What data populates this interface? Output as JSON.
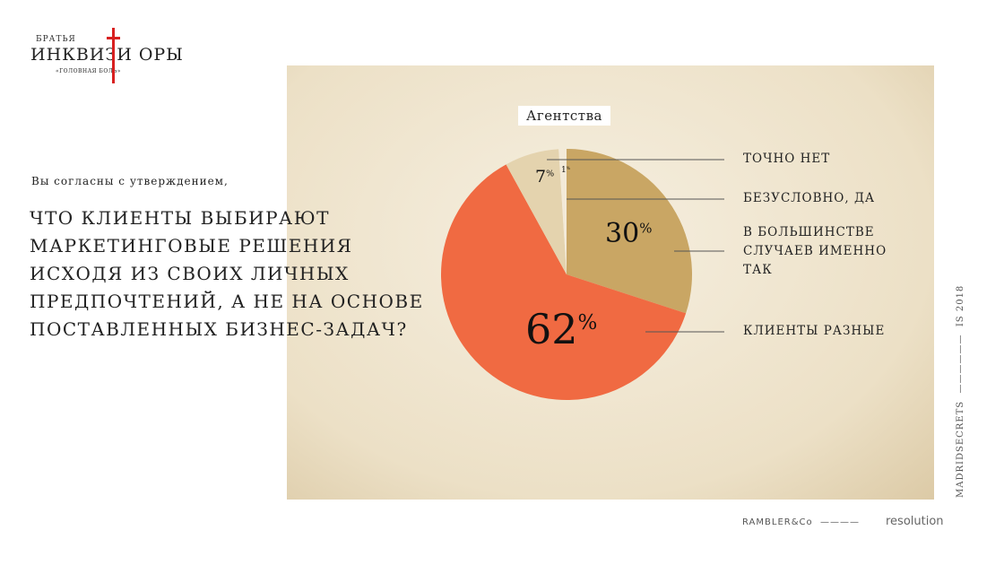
{
  "logo": {
    "top": "БРАТЬЯ",
    "main": "ИНКВИЗИ ОРЫ",
    "sub": "«ГОЛОВНАЯ БОЛЬ»"
  },
  "question": {
    "intro": "Вы согласны с утверждением,",
    "main": "что клиенты выбирают маркетинговые решения исходя из своих личных предпочтений, а не на основе поставленных бизнес-задач?"
  },
  "chart_data": {
    "type": "pie",
    "title": "Агентства",
    "slices": [
      {
        "label": "Безусловно, да",
        "value": 1,
        "display": "1%",
        "color": "#f3ead8"
      },
      {
        "label": "В большинстве случаев именно так",
        "value": 30,
        "display": "30%",
        "color": "#c9a664"
      },
      {
        "label": "Клиенты разные",
        "value": 62,
        "display": "62%",
        "color": "#f06a42"
      },
      {
        "label": "Точно нет",
        "value": 7,
        "display": "7%",
        "color": "#e4d3ae"
      }
    ],
    "legend_order": [
      "Точно нет",
      "Безусловно, да",
      "В большинстве случаев именно так",
      "Клиенты разные"
    ],
    "legend_placement": "right"
  },
  "footer": {
    "side_left": "MADRIDSECRETS",
    "side_right": "IS 2018",
    "partner1": "RAMBLER&Co",
    "partner2": "resolution"
  }
}
